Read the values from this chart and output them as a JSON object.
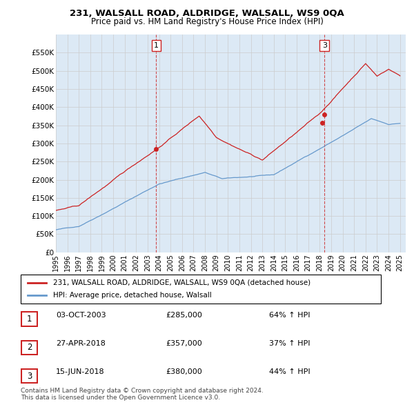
{
  "title1": "231, WALSALL ROAD, ALDRIDGE, WALSALL, WS9 0QA",
  "title2": "Price paid vs. HM Land Registry's House Price Index (HPI)",
  "ylabel_ticks": [
    "£0",
    "£50K",
    "£100K",
    "£150K",
    "£200K",
    "£250K",
    "£300K",
    "£350K",
    "£400K",
    "£450K",
    "£500K",
    "£550K"
  ],
  "ylim": [
    0,
    600000
  ],
  "ytick_values": [
    0,
    50000,
    100000,
    150000,
    200000,
    250000,
    300000,
    350000,
    400000,
    450000,
    500000,
    550000
  ],
  "legend_line1": "231, WALSALL ROAD, ALDRIDGE, WALSALL, WS9 0QA (detached house)",
  "legend_line2": "HPI: Average price, detached house, Walsall",
  "sale1_date": "03-OCT-2003",
  "sale1_price": 285000,
  "sale1_pct": "64% ↑ HPI",
  "sale2_date": "27-APR-2018",
  "sale2_price": 357000,
  "sale2_pct": "37% ↑ HPI",
  "sale3_date": "15-JUN-2018",
  "sale3_price": 380000,
  "sale3_pct": "44% ↑ HPI",
  "footnote1": "Contains HM Land Registry data © Crown copyright and database right 2024.",
  "footnote2": "This data is licensed under the Open Government Licence v3.0.",
  "hpi_color": "#6699cc",
  "price_color": "#cc2222",
  "grid_color": "#cccccc",
  "background_color": "#ffffff",
  "plot_bg_color": "#dce9f5"
}
